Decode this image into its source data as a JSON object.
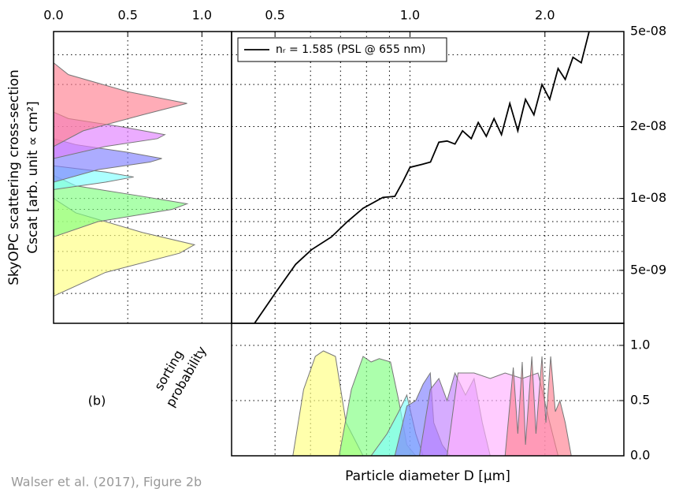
{
  "chart_data": [
    {
      "type": "line",
      "x_scale": "log",
      "y_scale": "log",
      "y_label": [
        "SkyOPC scattering cross-section",
        "Cscat [arb. unit ∝ cm²]"
      ],
      "xlim": [
        0.4,
        3.0
      ],
      "ylim": [
        3e-09,
        5e-08
      ],
      "xticks": [
        0.5,
        {
          "value": 1,
          "label": "1.0"
        },
        {
          "value": 2,
          "label": "2.0"
        }
      ],
      "yticks": [
        {
          "value": 5e-09,
          "label": "5e-09"
        },
        {
          "value": 1e-08,
          "label": "1e-08"
        },
        {
          "value": 2e-08,
          "label": "2e-08"
        },
        {
          "value": 5e-08,
          "label": "5e-08"
        }
      ],
      "xgrid": [
        0.5,
        0.6,
        0.7,
        0.8,
        0.9,
        1,
        2
      ],
      "ygrid": [
        4e-09,
        5e-09,
        6e-09,
        7e-09,
        8e-09,
        9e-09,
        1e-08,
        2e-08,
        3e-08,
        4e-08
      ],
      "xtick_side": "top",
      "ytick_side": "right",
      "legend": "upper left",
      "series": [
        {
          "name": "nᵣ = 1.585 (PSL @ 655 nm)",
          "color": "#000000",
          "x": [
            0.45,
            0.5,
            0.556,
            0.603,
            0.668,
            0.725,
            0.786,
            0.87,
            0.925,
            0.963,
            1.0,
            1.065,
            1.111,
            1.16,
            1.21,
            1.26,
            1.31,
            1.37,
            1.42,
            1.48,
            1.54,
            1.6,
            1.67,
            1.74,
            1.81,
            1.89,
            1.97,
            2.05,
            2.14,
            2.22,
            2.31,
            2.41,
            2.51
          ],
          "values": [
            3e-09,
            4e-09,
            5.3e-09,
            6.1e-09,
            6.9e-09,
            8e-09,
            9.1e-09,
            1.01e-08,
            1.02e-08,
            1.17e-08,
            1.35e-08,
            1.39e-08,
            1.42e-08,
            1.72e-08,
            1.74e-08,
            1.69e-08,
            1.92e-08,
            1.78e-08,
            2.08e-08,
            1.82e-08,
            2.16e-08,
            1.85e-08,
            2.5e-08,
            1.92e-08,
            2.6e-08,
            2.24e-08,
            3e-08,
            2.6e-08,
            3.5e-08,
            3.15e-08,
            3.9e-08,
            3.7e-08,
            5e-08
          ]
        }
      ]
    },
    {
      "type": "area",
      "orientation": "horizontal",
      "y_scale": "log",
      "xlim": [
        0,
        1.2
      ],
      "ylim": [
        3e-09,
        5e-08
      ],
      "xticks": [
        {
          "value": 0,
          "label": "0.0"
        },
        0.5,
        {
          "value": 1,
          "label": "1.0"
        }
      ],
      "xgrid": [
        0.5,
        1
      ],
      "ygrid": [
        4e-09,
        5e-09,
        6e-09,
        7e-09,
        8e-09,
        9e-09,
        1e-08,
        2e-08,
        3e-08,
        4e-08
      ],
      "xtick_side": "top",
      "series": [
        {
          "color": "#ffff80",
          "y": [
            3.9e-09,
            4.9e-09,
            5.9e-09,
            6.4e-09,
            7.2e-09,
            8.7e-09,
            1e-08
          ],
          "values": [
            0,
            0.35,
            0.85,
            0.95,
            0.6,
            0.15,
            0
          ]
        },
        {
          "color": "#80ff80",
          "y": [
            6.9e-09,
            8e-09,
            9e-09,
            9.5e-09,
            1.02e-08,
            1.13e-08,
            1.25e-08
          ],
          "values": [
            0,
            0.3,
            0.8,
            0.9,
            0.6,
            0.15,
            0
          ]
        },
        {
          "color": "#80ffff",
          "y": [
            1.09e-08,
            1.17e-08,
            1.23e-08,
            1.29e-08,
            1.37e-08
          ],
          "values": [
            0,
            0.35,
            0.54,
            0.35,
            0
          ]
        },
        {
          "color": "#8080ff",
          "y": [
            1.17e-08,
            1.32e-08,
            1.42e-08,
            1.47e-08,
            1.56e-08,
            1.68e-08,
            1.78e-08
          ],
          "values": [
            0,
            0.3,
            0.65,
            0.73,
            0.5,
            0.15,
            0
          ]
        },
        {
          "color": "#e080ff",
          "y": [
            1.47e-08,
            1.65e-08,
            1.78e-08,
            1.85e-08,
            2e-08,
            2.16e-08,
            2.3e-08
          ],
          "values": [
            0,
            0.35,
            0.7,
            0.75,
            0.45,
            0.1,
            0
          ]
        },
        {
          "color": "#ff8090",
          "y": [
            1.65e-08,
            1.92e-08,
            2.24e-08,
            2.5e-08,
            2.8e-08,
            3.3e-08,
            3.7e-08
          ],
          "values": [
            0,
            0.2,
            0.6,
            0.9,
            0.5,
            0.1,
            0
          ]
        }
      ]
    },
    {
      "type": "area",
      "x_scale": "log",
      "x_label": "Particle diameter D [μm]",
      "y_label": [
        "sorting",
        "probability"
      ],
      "panel_label": "(b)",
      "xlim": [
        0.4,
        3.0
      ],
      "ylim": [
        0,
        1.2
      ],
      "yticks": [
        {
          "value": 0,
          "label": "0.0"
        },
        0.5,
        {
          "value": 1,
          "label": "1.0"
        }
      ],
      "xgrid": [
        0.5,
        0.6,
        0.7,
        0.8,
        0.9,
        1,
        2
      ],
      "ygrid": [
        0.5,
        1
      ],
      "ytick_side": "right",
      "series": [
        {
          "color": "#ffff80",
          "x": [
            0.548,
            0.579,
            0.615,
            0.641,
            0.682,
            0.72,
            0.786
          ],
          "values": [
            0,
            0.6,
            0.9,
            0.95,
            0.9,
            0.3,
            0
          ]
        },
        {
          "color": "#80ff80",
          "x": [
            0.695,
            0.74,
            0.786,
            0.819,
            0.854,
            0.905,
            0.944,
            0.984,
            1.03
          ],
          "values": [
            0,
            0.6,
            0.9,
            0.85,
            0.88,
            0.85,
            0.5,
            0.1,
            0
          ]
        },
        {
          "color": "#80ffff",
          "x": [
            0.819,
            0.889,
            0.944,
            0.984,
            1.03,
            1.07
          ],
          "values": [
            0,
            0.2,
            0.4,
            0.55,
            0.2,
            0
          ]
        },
        {
          "color": "#8080ff",
          "x": [
            0.925,
            0.984,
            1.03,
            1.07,
            1.11,
            1.13,
            1.18,
            1.23
          ],
          "values": [
            0,
            0.45,
            0.5,
            0.65,
            0.75,
            0.3,
            0.1,
            0
          ]
        },
        {
          "color": "#c080ff",
          "x": [
            1.05,
            1.11,
            1.16,
            1.21,
            1.26,
            1.33,
            1.39,
            1.45,
            1.51
          ],
          "values": [
            0,
            0.6,
            0.7,
            0.5,
            0.75,
            0.55,
            0.7,
            0.3,
            0
          ]
        },
        {
          "color": "#ffb0ff",
          "x": [
            1.21,
            1.28,
            1.39,
            1.51,
            1.63,
            1.78,
            1.93,
            2.05,
            2.14
          ],
          "values": [
            0,
            0.75,
            0.75,
            0.7,
            0.75,
            0.7,
            0.75,
            0.3,
            0
          ]
        },
        {
          "color": "#ff8090",
          "x": [
            1.63,
            1.7,
            1.74,
            1.78,
            1.81,
            1.87,
            1.91,
            1.97,
            2.01,
            2.06,
            2.11,
            2.16,
            2.22,
            2.29
          ],
          "values": [
            0,
            0.8,
            0.2,
            0.85,
            0.1,
            0.9,
            0.2,
            0.9,
            0.3,
            0.9,
            0.4,
            0.5,
            0.3,
            0
          ]
        }
      ]
    }
  ],
  "caption": "Walser et al. (2017), Figure 2b"
}
